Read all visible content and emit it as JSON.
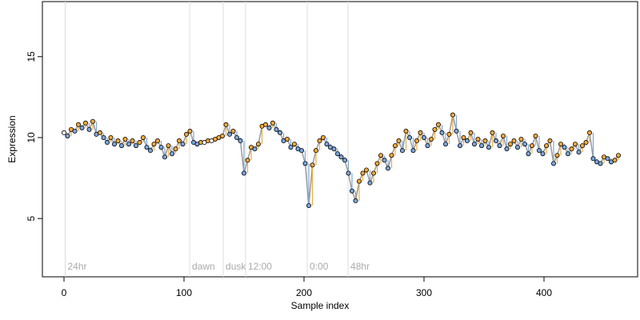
{
  "chart_data": {
    "type": "line",
    "x_label": "Sample index",
    "y_label": "Expression",
    "xlim": [
      -18,
      478
    ],
    "ylim": [
      1.4,
      18.4
    ],
    "xticks": [
      0,
      100,
      200,
      300,
      400
    ],
    "yticks": [
      5,
      10,
      15
    ],
    "markers": [
      {
        "x": 1,
        "label": "24hr"
      },
      {
        "x": 104.7,
        "label": "dawn"
      },
      {
        "x": 132.7,
        "label": "dusk"
      },
      {
        "x": 151.3,
        "label": "12:00"
      },
      {
        "x": 202.7,
        "label": "0:00"
      },
      {
        "x": 236.7,
        "label": "48hr"
      }
    ],
    "line_color": "#9a9a9a",
    "up_color": "#f5a83a",
    "down_color": "#7aa6dc",
    "point_color": "#ffffff",
    "x": [
      0,
      3,
      6,
      9,
      12,
      15,
      18,
      21,
      24,
      27,
      30,
      33,
      36,
      39,
      42,
      45,
      48,
      51,
      54,
      57,
      60,
      63,
      66,
      69,
      72,
      75,
      78,
      81,
      84,
      87,
      90,
      93,
      96,
      99,
      102,
      105,
      108,
      111,
      114,
      117,
      120,
      123,
      126,
      129,
      132,
      135,
      138,
      141,
      144,
      147,
      150,
      153,
      156,
      159,
      162,
      165,
      168,
      171,
      174,
      177,
      180,
      183,
      186,
      189,
      192,
      195,
      198,
      201,
      204,
      207,
      210,
      213,
      216,
      219,
      222,
      225,
      228,
      231,
      234,
      237,
      240,
      243,
      246,
      249,
      252,
      255,
      258,
      261,
      264,
      267,
      270,
      273,
      276,
      279,
      282,
      285,
      288,
      291,
      294,
      297,
      300,
      303,
      306,
      309,
      312,
      315,
      318,
      321,
      324,
      327,
      330,
      333,
      336,
      339,
      342,
      345,
      348,
      351,
      354,
      357,
      360,
      363,
      366,
      369,
      372,
      375,
      378,
      381,
      384,
      387,
      390,
      393,
      396,
      399,
      402,
      405,
      408,
      411,
      414,
      417,
      420,
      423,
      426,
      429,
      432,
      435,
      438,
      441,
      444,
      447,
      450,
      453,
      456,
      459,
      462
    ],
    "values": [
      10.3,
      10.1,
      10.5,
      10.4,
      10.8,
      10.6,
      10.9,
      10.5,
      11.0,
      10.2,
      10.3,
      10.0,
      9.7,
      10.0,
      9.6,
      9.8,
      9.5,
      9.9,
      9.6,
      9.8,
      9.5,
      9.7,
      10.0,
      9.4,
      9.2,
      9.6,
      9.8,
      9.4,
      8.8,
      9.5,
      9.0,
      9.3,
      9.8,
      9.6,
      10.2,
      10.4,
      9.7,
      9.6,
      9.7,
      9.7,
      9.8,
      9.8,
      9.9,
      10.0,
      10.1,
      10.8,
      10.2,
      10.4,
      10.0,
      9.8,
      7.8,
      8.6,
      9.4,
      9.3,
      9.6,
      10.7,
      10.8,
      10.6,
      10.9,
      10.5,
      10.3,
      9.8,
      9.9,
      9.4,
      9.6,
      9.3,
      9.2,
      8.4,
      5.8,
      8.3,
      9.2,
      9.8,
      10.0,
      9.6,
      9.4,
      9.3,
      9.0,
      8.8,
      8.6,
      7.8,
      6.7,
      6.1,
      7.3,
      7.8,
      8.0,
      7.2,
      7.8,
      8.4,
      8.9,
      8.6,
      8.1,
      8.9,
      9.5,
      9.8,
      9.2,
      10.4,
      10.0,
      9.2,
      9.8,
      10.3,
      10.0,
      9.5,
      9.9,
      10.5,
      10.8,
      10.3,
      9.6,
      10.2,
      11.4,
      10.4,
      9.5,
      10.0,
      9.8,
      10.3,
      9.6,
      9.9,
      9.5,
      9.8,
      9.4,
      10.3,
      9.8,
      9.5,
      10.1,
      9.3,
      9.6,
      9.8,
      9.4,
      9.9,
      9.6,
      9.0,
      9.5,
      10.1,
      9.2,
      9.0,
      9.5,
      9.8,
      8.4,
      8.9,
      9.6,
      9.4,
      9.0,
      9.3,
      9.6,
      9.1,
      9.5,
      9.7,
      10.3,
      8.7,
      8.5,
      8.4,
      8.8,
      8.7,
      8.5,
      8.6,
      8.9
    ]
  }
}
